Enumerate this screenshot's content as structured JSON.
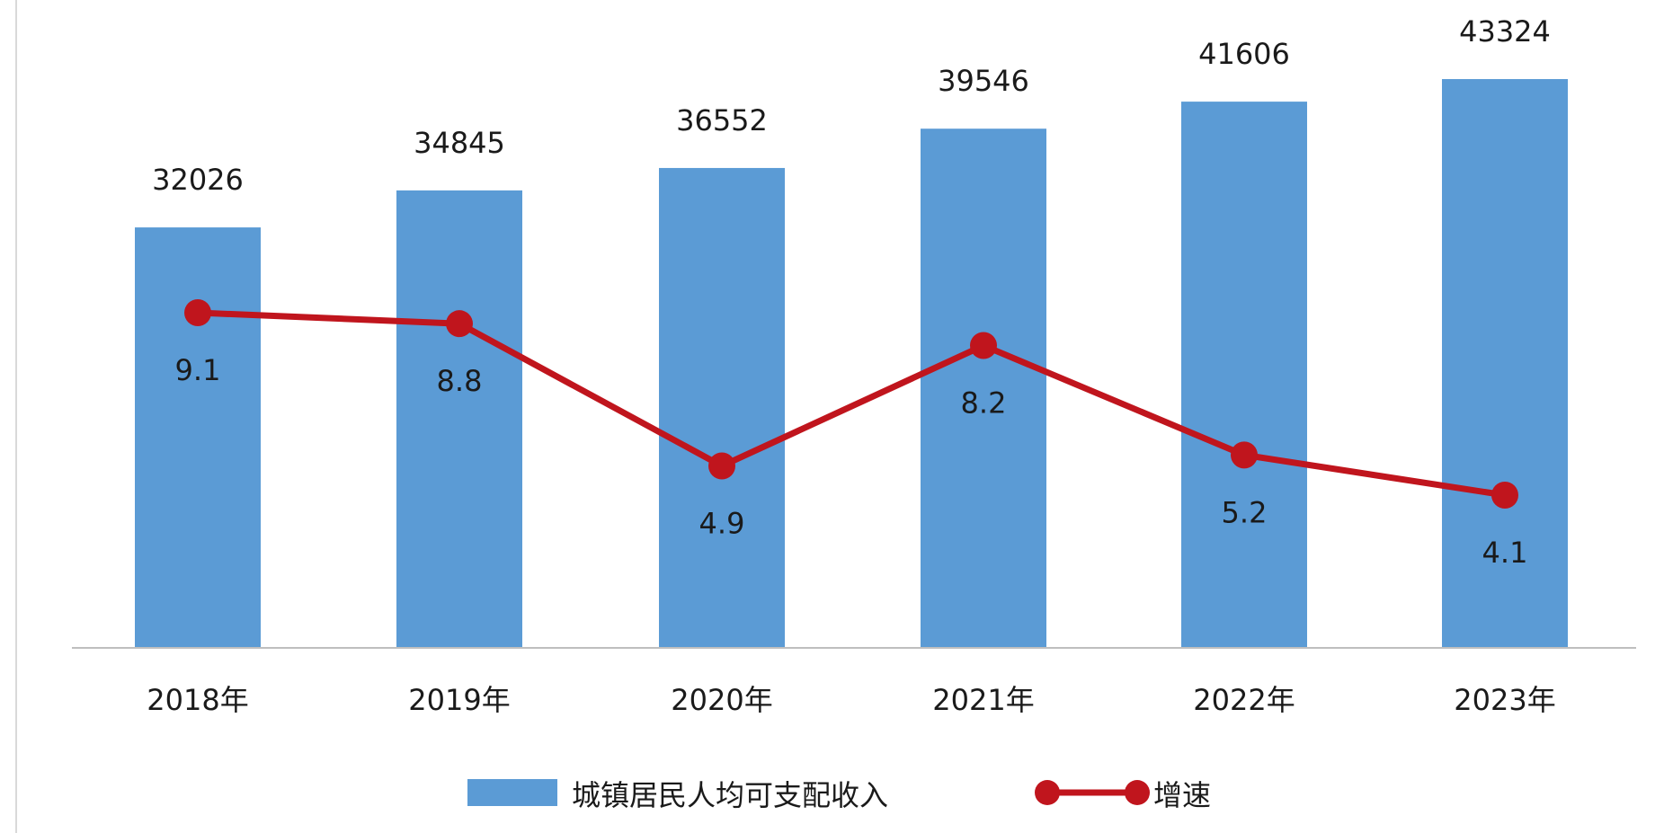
{
  "chart_data": {
    "type": "bar",
    "categories": [
      "2018年",
      "2019年",
      "2020年",
      "2021年",
      "2022年",
      "2023年"
    ],
    "series": [
      {
        "name": "城镇居民人均可支配收入",
        "type": "bar",
        "values": [
          32026,
          34845,
          36552,
          39546,
          41606,
          43324
        ],
        "color": "#5B9BD5"
      },
      {
        "name": "增速",
        "type": "line",
        "values": [
          9.1,
          8.8,
          4.9,
          8.2,
          5.2,
          4.1
        ],
        "color": "#C0151D"
      }
    ],
    "bar_ylim": [
      0,
      48000
    ],
    "line_ylim": [
      0,
      18
    ],
    "data_labels": true,
    "legend_position": "bottom",
    "grid": false
  }
}
